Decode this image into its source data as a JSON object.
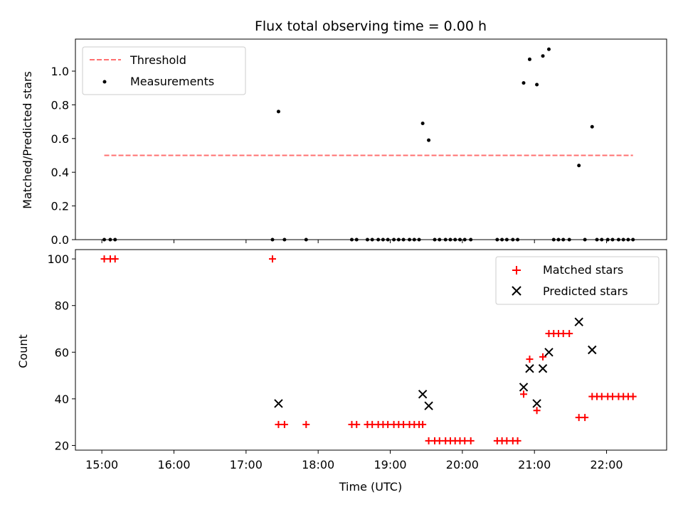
{
  "chart_data": [
    {
      "type": "scatter",
      "title": "Flux total observing time = 0.00 h",
      "xlabel": "",
      "ylabel": "Matched/Predicted stars",
      "xlim": [
        "14:38",
        "22:50"
      ],
      "ylim": [
        0,
        1.19
      ],
      "yticks": [
        0.0,
        0.2,
        0.4,
        0.6,
        0.8,
        1.0
      ],
      "ytick_labels": [
        "0.0",
        "0.2",
        "0.4",
        "0.6",
        "0.8",
        "1.0"
      ],
      "legend_position": "upper left",
      "colors": {
        "threshold": "#ff7070",
        "measurements": "#000000"
      },
      "series": [
        {
          "name": "Threshold",
          "style": "dashed-line",
          "x": [
            "15:02",
            "22:22"
          ],
          "y": [
            0.5,
            0.5
          ]
        },
        {
          "name": "Measurements",
          "style": "dot",
          "points": [
            [
              "15:02",
              0.0
            ],
            [
              "15:07",
              0.0
            ],
            [
              "15:11",
              0.0
            ],
            [
              "17:22",
              0.0
            ],
            [
              "17:27",
              0.76
            ],
            [
              "17:32",
              0.0
            ],
            [
              "17:50",
              0.0
            ],
            [
              "18:28",
              0.0
            ],
            [
              "18:32",
              0.0
            ],
            [
              "18:41",
              0.0
            ],
            [
              "18:45",
              0.0
            ],
            [
              "18:50",
              0.0
            ],
            [
              "18:54",
              0.0
            ],
            [
              "18:58",
              0.0
            ],
            [
              "19:03",
              0.0
            ],
            [
              "19:07",
              0.0
            ],
            [
              "19:11",
              0.0
            ],
            [
              "19:16",
              0.0
            ],
            [
              "19:20",
              0.0
            ],
            [
              "19:24",
              0.0
            ],
            [
              "19:27",
              0.69
            ],
            [
              "19:32",
              0.59
            ],
            [
              "19:37",
              0.0
            ],
            [
              "19:41",
              0.0
            ],
            [
              "19:46",
              0.0
            ],
            [
              "19:50",
              0.0
            ],
            [
              "19:54",
              0.0
            ],
            [
              "19:58",
              0.0
            ],
            [
              "20:02",
              0.0
            ],
            [
              "20:07",
              0.0
            ],
            [
              "20:29",
              0.0
            ],
            [
              "20:33",
              0.0
            ],
            [
              "20:37",
              0.0
            ],
            [
              "20:42",
              0.0
            ],
            [
              "20:46",
              0.0
            ],
            [
              "20:51",
              0.93
            ],
            [
              "20:56",
              1.07
            ],
            [
              "21:02",
              0.92
            ],
            [
              "21:07",
              1.09
            ],
            [
              "21:12",
              1.13
            ],
            [
              "21:16",
              0.0
            ],
            [
              "21:20",
              0.0
            ],
            [
              "21:24",
              0.0
            ],
            [
              "21:29",
              0.0
            ],
            [
              "21:37",
              0.44
            ],
            [
              "21:42",
              0.0
            ],
            [
              "21:48",
              0.67
            ],
            [
              "21:52",
              0.0
            ],
            [
              "21:56",
              0.0
            ],
            [
              "22:01",
              0.0
            ],
            [
              "22:05",
              0.0
            ],
            [
              "22:10",
              0.0
            ],
            [
              "22:14",
              0.0
            ],
            [
              "22:18",
              0.0
            ],
            [
              "22:22",
              0.0
            ]
          ]
        }
      ]
    },
    {
      "type": "scatter",
      "title": "",
      "xlabel": "Time (UTC)",
      "ylabel": "Count",
      "xlim": [
        "14:38",
        "22:50"
      ],
      "xticks": [
        "15:00",
        "16:00",
        "17:00",
        "18:00",
        "19:00",
        "20:00",
        "21:00",
        "22:00"
      ],
      "xtick_labels": [
        "15:00",
        "16:00",
        "17:00",
        "18:00",
        "19:00",
        "20:00",
        "21:00",
        "22:00"
      ],
      "ylim": [
        18,
        104
      ],
      "yticks": [
        20,
        40,
        60,
        80,
        100
      ],
      "ytick_labels": [
        "20",
        "40",
        "60",
        "80",
        "100"
      ],
      "legend_position": "upper right",
      "colors": {
        "matched": "#ff0000",
        "predicted": "#000000"
      },
      "series": [
        {
          "name": "Matched stars",
          "marker": "plus",
          "points": [
            [
              "15:02",
              100
            ],
            [
              "15:07",
              100
            ],
            [
              "15:11",
              100
            ],
            [
              "17:22",
              100
            ],
            [
              "17:27",
              29
            ],
            [
              "17:32",
              29
            ],
            [
              "17:50",
              29
            ],
            [
              "18:28",
              29
            ],
            [
              "18:32",
              29
            ],
            [
              "18:41",
              29
            ],
            [
              "18:45",
              29
            ],
            [
              "18:50",
              29
            ],
            [
              "18:54",
              29
            ],
            [
              "18:58",
              29
            ],
            [
              "19:03",
              29
            ],
            [
              "19:07",
              29
            ],
            [
              "19:11",
              29
            ],
            [
              "19:16",
              29
            ],
            [
              "19:20",
              29
            ],
            [
              "19:24",
              29
            ],
            [
              "19:27",
              29
            ],
            [
              "19:32",
              22
            ],
            [
              "19:37",
              22
            ],
            [
              "19:41",
              22
            ],
            [
              "19:46",
              22
            ],
            [
              "19:50",
              22
            ],
            [
              "19:54",
              22
            ],
            [
              "19:58",
              22
            ],
            [
              "20:02",
              22
            ],
            [
              "20:07",
              22
            ],
            [
              "20:29",
              22
            ],
            [
              "20:33",
              22
            ],
            [
              "20:37",
              22
            ],
            [
              "20:42",
              22
            ],
            [
              "20:46",
              22
            ],
            [
              "20:51",
              42
            ],
            [
              "20:56",
              57
            ],
            [
              "21:02",
              35
            ],
            [
              "21:07",
              58
            ],
            [
              "21:12",
              68
            ],
            [
              "21:16",
              68
            ],
            [
              "21:20",
              68
            ],
            [
              "21:24",
              68
            ],
            [
              "21:29",
              68
            ],
            [
              "21:37",
              32
            ],
            [
              "21:42",
              32
            ],
            [
              "21:48",
              41
            ],
            [
              "21:52",
              41
            ],
            [
              "21:56",
              41
            ],
            [
              "22:01",
              41
            ],
            [
              "22:05",
              41
            ],
            [
              "22:10",
              41
            ],
            [
              "22:14",
              41
            ],
            [
              "22:18",
              41
            ],
            [
              "22:22",
              41
            ]
          ]
        },
        {
          "name": "Predicted stars",
          "marker": "x",
          "points": [
            [
              "17:27",
              38
            ],
            [
              "19:27",
              42
            ],
            [
              "19:32",
              37
            ],
            [
              "20:51",
              45
            ],
            [
              "20:56",
              53
            ],
            [
              "21:02",
              38
            ],
            [
              "21:07",
              53
            ],
            [
              "21:12",
              60
            ],
            [
              "21:37",
              73
            ],
            [
              "21:48",
              61
            ]
          ]
        }
      ]
    }
  ]
}
